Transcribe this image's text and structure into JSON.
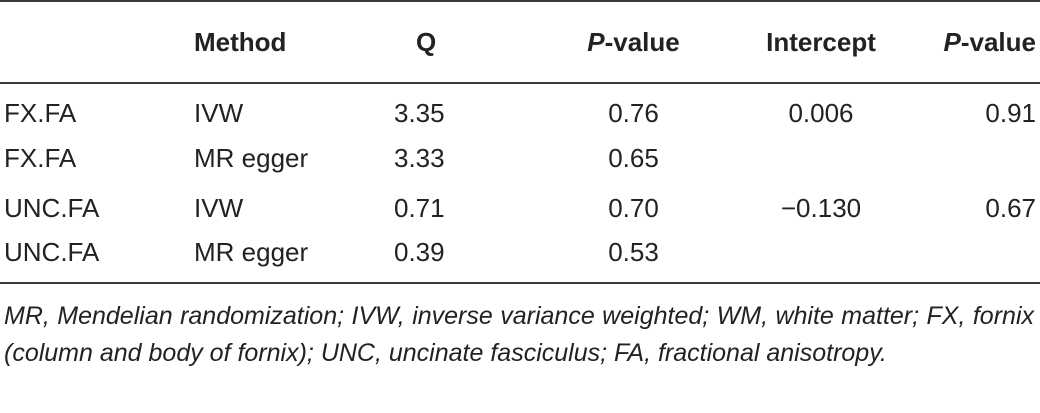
{
  "table": {
    "headers": [
      {
        "pre": "",
        "italic": "",
        "post": ""
      },
      {
        "pre": "Method",
        "italic": "",
        "post": ""
      },
      {
        "pre": "Q",
        "italic": "",
        "post": ""
      },
      {
        "pre": "",
        "italic": "P",
        "post": "-value"
      },
      {
        "pre": "Intercept",
        "italic": "",
        "post": ""
      },
      {
        "pre": "",
        "italic": "P",
        "post": "-value"
      }
    ],
    "rows": [
      [
        "FX.FA",
        "IVW",
        "3.35",
        "0.76",
        "0.006",
        "0.91"
      ],
      [
        "FX.FA",
        "MR egger",
        "3.33",
        "0.65",
        "",
        ""
      ],
      [
        "UNC.FA",
        "IVW",
        "0.71",
        "0.70",
        "−0.130",
        "0.67"
      ],
      [
        "UNC.FA",
        "MR egger",
        "0.39",
        "0.53",
        "",
        ""
      ]
    ]
  },
  "footnote": "MR, Mendelian randomization; IVW, inverse variance weighted; WM, white matter; FX, fornix (column and body of fornix); UNC, uncinate fasciculus; FA, fractional anisotropy."
}
